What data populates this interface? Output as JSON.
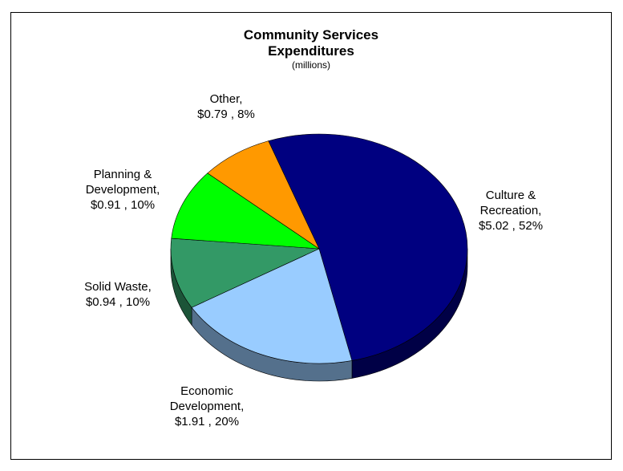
{
  "chart_data": {
    "type": "pie",
    "title": "Community Services Expenditures",
    "subtitle": "(millions)",
    "slices": [
      {
        "name": "Culture & Recreation",
        "value": 5.02,
        "percent": 52,
        "label_lines": [
          "Culture &",
          "Recreation,",
          "$5.02 , 52%"
        ],
        "color": "#000080"
      },
      {
        "name": "Economic Development",
        "value": 1.91,
        "percent": 20,
        "label_lines": [
          "Economic",
          "Development,",
          "$1.91 , 20%"
        ],
        "color": "#99ccff"
      },
      {
        "name": "Solid Waste",
        "value": 0.94,
        "percent": 10,
        "label_lines": [
          "Solid Waste,",
          "$0.94 , 10%"
        ],
        "color": "#339966"
      },
      {
        "name": "Planning & Development",
        "value": 0.91,
        "percent": 10,
        "label_lines": [
          "Planning &",
          "Development,",
          "$0.91 , 10%"
        ],
        "color": "#00ff00"
      },
      {
        "name": "Other",
        "value": 0.79,
        "percent": 8,
        "label_lines": [
          "Other,",
          "$0.79 , 8%"
        ],
        "color": "#ff9900"
      }
    ]
  }
}
